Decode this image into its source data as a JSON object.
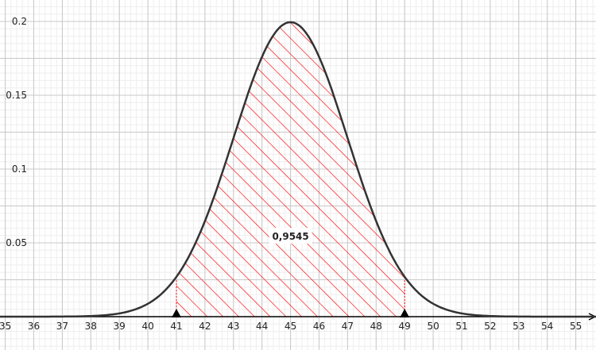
{
  "chart_data": {
    "type": "area",
    "distribution": "normal",
    "mean": 45,
    "sd": 2,
    "shaded_interval": [
      41,
      49
    ],
    "area_label": "0,9545",
    "xlim": [
      35,
      55.8
    ],
    "ylim": [
      0,
      0.21
    ],
    "x_ticks": [
      "35",
      "36",
      "37",
      "38",
      "39",
      "40",
      "41",
      "42",
      "43",
      "44",
      "45",
      "46",
      "47",
      "48",
      "49",
      "50",
      "51",
      "52",
      "53",
      "54",
      "55"
    ],
    "y_ticks": [
      {
        "value": 0.05,
        "label": "0.05"
      },
      {
        "value": 0.1,
        "label": "0.1"
      },
      {
        "value": 0.15,
        "label": "0.15"
      },
      {
        "value": 0.2,
        "label": "0.2"
      }
    ],
    "grid": true,
    "colors": {
      "curve": "#333333",
      "hatch": "#ff0000",
      "grid_major": "#c8c8c8",
      "grid_minor": "#eeeeee",
      "axis": "#000000"
    }
  }
}
